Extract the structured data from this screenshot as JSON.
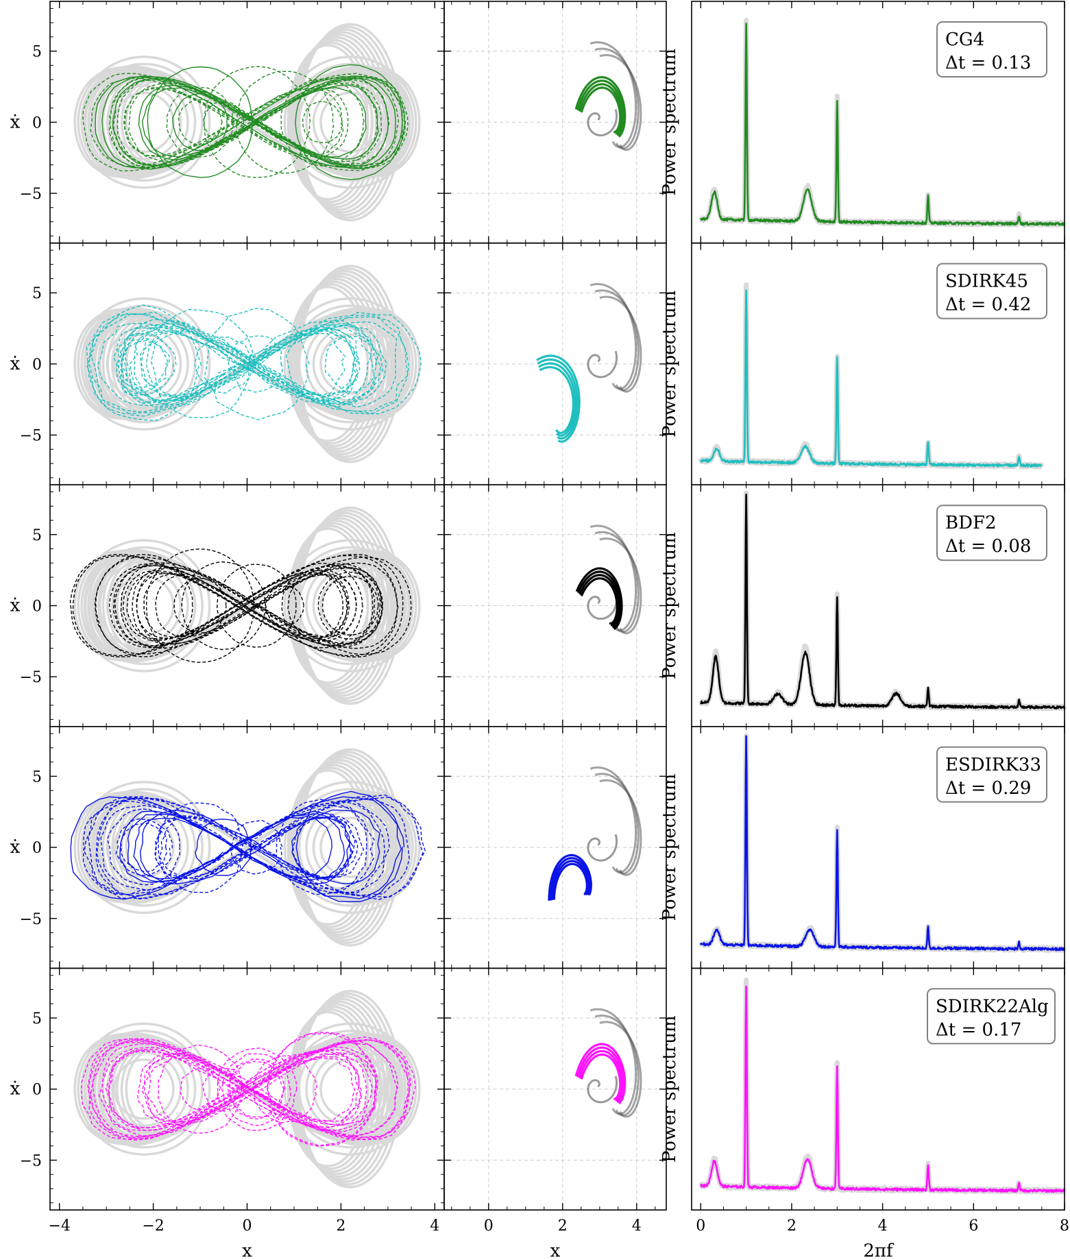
{
  "chart_data": [
    {
      "type": "multi-panel",
      "row_count": 5,
      "columns": [
        {
          "kind": "phase-portrait",
          "xlabel": "x",
          "ylabel": "ẋ",
          "xlim": [
            -4.2,
            4.2
          ],
          "ylim": [
            -8.5,
            8.5
          ],
          "xticks": [
            "−4",
            "−2",
            "0",
            "2",
            "4"
          ],
          "yticks": [
            "5",
            "0",
            "−5"
          ]
        },
        {
          "kind": "poincare-section",
          "xlabel": "x",
          "xlim": [
            -1.2,
            4.8
          ],
          "ylim": [
            -8.5,
            8.5
          ],
          "xticks": [
            "0",
            "2",
            "4"
          ],
          "grid": true
        },
        {
          "kind": "power-spectrum",
          "xlabel": "2πf",
          "ylabel": "Power spectrum",
          "xlim": [
            -0.2,
            8
          ],
          "xticks": [
            "0",
            "2",
            "4",
            "6",
            "8"
          ]
        }
      ],
      "reference_color": "#d9d9d9",
      "rows": [
        {
          "method": "CG4",
          "dt_label": "Δt = 0.13",
          "color": "#228b22",
          "phase": {
            "style": "solid+dashed",
            "distortion": 0.15
          },
          "section": {
            "rotation_deg": 10,
            "center": [
              3.3,
              -0.5
            ],
            "scale": 0.85
          },
          "spectrum": {
            "peaks": [
              {
                "f": 1,
                "h": 0.93
              },
              {
                "f": 3,
                "h": 0.58
              },
              {
                "f": 5,
                "h": 0.13
              },
              {
                "f": 7,
                "h": 0.04
              }
            ],
            "bumps": [
              {
                "f": 0.3,
                "h": 0.13
              },
              {
                "f": 2.35,
                "h": 0.15
              }
            ]
          }
        },
        {
          "method": "SDIRK45",
          "dt_label": "Δt = 0.42",
          "color": "#1fbfbf",
          "phase": {
            "style": "dashed",
            "distortion": 0.55
          },
          "section": {
            "rotation_deg": -35,
            "center": [
              1.8,
              -4.2
            ],
            "scale": 0.95
          },
          "spectrum": {
            "peaks": [
              {
                "f": 1,
                "h": 0.82
              },
              {
                "f": 3,
                "h": 0.5
              },
              {
                "f": 5,
                "h": 0.11
              },
              {
                "f": 7,
                "h": 0.04
              }
            ],
            "bumps": [
              {
                "f": 0.35,
                "h": 0.06
              },
              {
                "f": 2.3,
                "h": 0.08
              }
            ]
          }
        },
        {
          "method": "BDF2",
          "dt_label": "Δt = 0.08",
          "color": "#000000",
          "phase": {
            "style": "dashed",
            "distortion": 0.08
          },
          "section": {
            "rotation_deg": 0,
            "center": [
              3.2,
              -1.0
            ],
            "scale": 0.8
          },
          "spectrum": {
            "peaks": [
              {
                "f": 1,
                "h": 0.99
              },
              {
                "f": 3,
                "h": 0.52
              },
              {
                "f": 5,
                "h": 0.09
              },
              {
                "f": 7,
                "h": 0.03
              }
            ],
            "bumps": [
              {
                "f": 0.33,
                "h": 0.22
              },
              {
                "f": 1.7,
                "h": 0.05
              },
              {
                "f": 2.3,
                "h": 0.25
              },
              {
                "f": 4.3,
                "h": 0.06
              }
            ]
          }
        },
        {
          "method": "ESDIRK33",
          "dt_label": "Δt = 0.29",
          "color": "#0a14e6",
          "phase": {
            "style": "solid+dashed",
            "distortion": 0.35
          },
          "section": {
            "rotation_deg": 35,
            "center": [
              2.5,
              -3.3
            ],
            "scale": 0.75
          },
          "spectrum": {
            "peaks": [
              {
                "f": 1,
                "h": 0.99
              },
              {
                "f": 3,
                "h": 0.56
              },
              {
                "f": 5,
                "h": 0.1
              },
              {
                "f": 7,
                "h": 0.03
              }
            ],
            "bumps": [
              {
                "f": 0.35,
                "h": 0.07
              },
              {
                "f": 2.4,
                "h": 0.08
              }
            ]
          }
        },
        {
          "method": "SDIRK22Alg",
          "dt_label": "Δt = 0.17",
          "color": "#ff12ff",
          "phase": {
            "style": "dashed",
            "distortion": 0.3
          },
          "section": {
            "rotation_deg": 10,
            "center": [
              3.3,
              -0.5
            ],
            "scale": 0.85
          },
          "spectrum": {
            "peaks": [
              {
                "f": 1,
                "h": 0.96
              },
              {
                "f": 3,
                "h": 0.58
              },
              {
                "f": 5,
                "h": 0.12
              },
              {
                "f": 7,
                "h": 0.04
              }
            ],
            "bumps": [
              {
                "f": 0.3,
                "h": 0.12
              },
              {
                "f": 2.35,
                "h": 0.14
              }
            ]
          }
        }
      ]
    }
  ]
}
